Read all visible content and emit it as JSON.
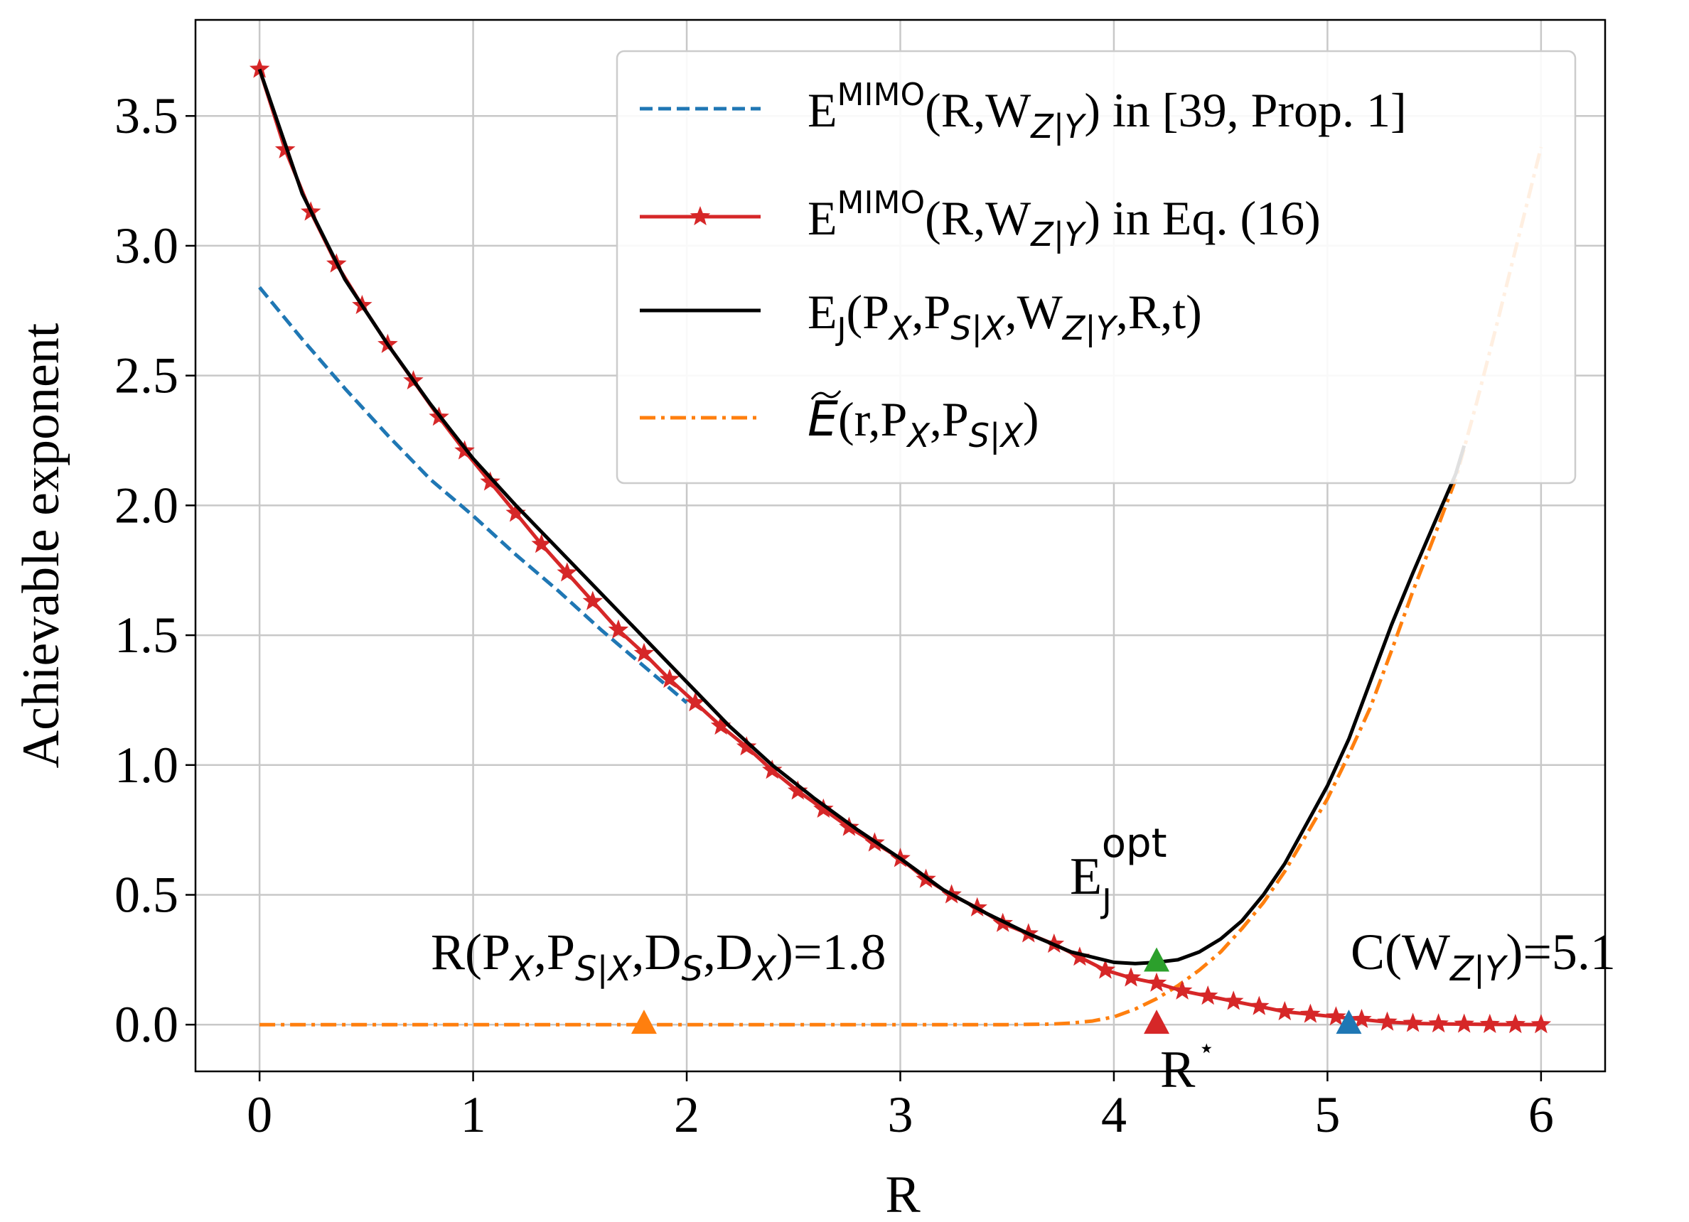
{
  "chart_data": {
    "type": "line",
    "xlabel": "R",
    "ylabel": "Achievable exponent",
    "xlim": [
      -0.3,
      6.3
    ],
    "ylim": [
      -0.18,
      3.87
    ],
    "xticks": [
      0,
      1,
      2,
      3,
      4,
      5,
      6
    ],
    "xtick_labels": [
      "0",
      "1",
      "2",
      "3",
      "4",
      "5",
      "6"
    ],
    "yticks": [
      0.0,
      0.5,
      1.0,
      1.5,
      2.0,
      2.5,
      3.0,
      3.5
    ],
    "ytick_labels": [
      "0.0",
      "0.5",
      "1.0",
      "1.5",
      "2.0",
      "2.5",
      "3.0",
      "3.5"
    ],
    "grid": true,
    "legend_position": "upper-right",
    "colors": {
      "blue": "#1f77b4",
      "red": "#d62728",
      "black": "#000000",
      "orange": "#ff7f0e",
      "green": "#2ca02c",
      "grid": "#c8c8c8"
    },
    "series": [
      {
        "name": "E^MIMO(R,W_Z|Y) in [39, Prop. 1]",
        "legend": {
          "base": "E",
          "sup": "MIMO",
          "a": "(R,W",
          "sub": "Z|Y",
          "b": ") in [39, Prop. 1]"
        },
        "color": "blue",
        "style": "dashed",
        "x": [
          0,
          0.2,
          0.4,
          0.6,
          0.8,
          1.0,
          1.2,
          1.4,
          1.6,
          1.8,
          2.0
        ],
        "y": [
          2.84,
          2.64,
          2.45,
          2.27,
          2.1,
          1.96,
          1.81,
          1.67,
          1.52,
          1.38,
          1.24
        ]
      },
      {
        "name": "E^MIMO(R,W_Z|Y) in Eq. (16)",
        "legend": {
          "base": "E",
          "sup": "MIMO",
          "a": "(R,W",
          "sub": "Z|Y",
          "b": ") in Eq. (16)"
        },
        "color": "red",
        "style": "solid",
        "marker": "star",
        "x": [
          0,
          0.12,
          0.24,
          0.36,
          0.48,
          0.6,
          0.72,
          0.84,
          0.96,
          1.08,
          1.2,
          1.32,
          1.44,
          1.56,
          1.68,
          1.8,
          1.92,
          2.04,
          2.16,
          2.28,
          2.4,
          2.52,
          2.64,
          2.76,
          2.88,
          3.0,
          3.12,
          3.24,
          3.36,
          3.48,
          3.6,
          3.72,
          3.84,
          3.96,
          4.08,
          4.2,
          4.32,
          4.44,
          4.56,
          4.68,
          4.8,
          4.92,
          5.04,
          5.16,
          5.28,
          5.4,
          5.52,
          5.64,
          5.76,
          5.88,
          6.0
        ],
        "y": [
          3.68,
          3.37,
          3.13,
          2.93,
          2.77,
          2.62,
          2.48,
          2.34,
          2.21,
          2.09,
          1.97,
          1.85,
          1.74,
          1.63,
          1.52,
          1.43,
          1.33,
          1.24,
          1.15,
          1.07,
          0.98,
          0.9,
          0.83,
          0.76,
          0.7,
          0.64,
          0.56,
          0.5,
          0.45,
          0.39,
          0.35,
          0.31,
          0.26,
          0.21,
          0.18,
          0.16,
          0.13,
          0.11,
          0.09,
          0.07,
          0.05,
          0.04,
          0.03,
          0.02,
          0.01,
          0.005,
          0.003,
          0.002,
          0.001,
          0.0005,
          0.0
        ]
      },
      {
        "name": "E_J(P_X,P_S|X,W_Z|Y,R,t)",
        "legend": {
          "base": "E",
          "sub0": "J",
          "a": "(P",
          "sub1": "X",
          "b": ",P",
          "sub2": "S|X",
          "c": ",W",
          "sub3": "Z|Y",
          "d": ",R,t)"
        },
        "color": "black",
        "style": "solid",
        "x": [
          0,
          0.2,
          0.4,
          0.6,
          0.8,
          1.0,
          1.2,
          1.4,
          1.6,
          1.8,
          2.0,
          2.2,
          2.4,
          2.6,
          2.8,
          3.0,
          3.2,
          3.4,
          3.6,
          3.8,
          4.0,
          4.1,
          4.2,
          4.3,
          4.4,
          4.5,
          4.6,
          4.7,
          4.8,
          4.9,
          5.0,
          5.1,
          5.2,
          5.3,
          5.4,
          5.5,
          5.6,
          5.64
        ],
        "y": [
          3.68,
          3.2,
          2.87,
          2.62,
          2.39,
          2.18,
          2.0,
          1.83,
          1.66,
          1.49,
          1.32,
          1.15,
          1.0,
          0.87,
          0.75,
          0.64,
          0.52,
          0.43,
          0.35,
          0.28,
          0.24,
          0.235,
          0.24,
          0.25,
          0.28,
          0.33,
          0.4,
          0.5,
          0.62,
          0.77,
          0.92,
          1.1,
          1.32,
          1.54,
          1.74,
          1.93,
          2.12,
          2.23
        ]
      },
      {
        "name": "Ẽ(r,P_X,P_S|X)",
        "legend": {
          "base": "E",
          "a": "(r,P",
          "sub1": "X",
          "b": ",P",
          "sub2": "S|X",
          "c": ")"
        },
        "color": "orange",
        "style": "dashdot",
        "x": [
          0,
          1.0,
          2.0,
          3.0,
          3.5,
          3.7,
          3.8,
          3.9,
          4.0,
          4.1,
          4.2,
          4.3,
          4.4,
          4.5,
          4.6,
          4.7,
          4.8,
          4.9,
          5.0,
          5.1,
          5.2,
          5.3,
          5.4,
          5.5,
          5.6,
          5.7,
          5.8,
          5.9,
          6.0
        ],
        "y": [
          0,
          0,
          0,
          0,
          0,
          0.002,
          0.006,
          0.014,
          0.03,
          0.06,
          0.1,
          0.15,
          0.21,
          0.28,
          0.37,
          0.47,
          0.59,
          0.73,
          0.87,
          1.04,
          1.22,
          1.44,
          1.67,
          1.88,
          2.1,
          2.4,
          2.72,
          3.05,
          3.38
        ]
      }
    ],
    "points": [
      {
        "id": "green-triangle",
        "x": 4.2,
        "y": 0.24,
        "color": "green"
      },
      {
        "id": "red-triangle",
        "x": 4.2,
        "y": 0.0,
        "color": "red"
      },
      {
        "id": "orange-triangle",
        "x": 1.8,
        "y": 0.0,
        "color": "orange"
      },
      {
        "id": "blue-triangle",
        "x": 5.1,
        "y": 0.0,
        "color": "blue"
      }
    ],
    "annotations": {
      "ej_opt": {
        "base": "E",
        "sub": "J",
        "sup": "opt"
      },
      "rate_distortion": {
        "a": "R(P",
        "s1": "X",
        "b": ",P",
        "s2": "S|X",
        "c": ",D",
        "s3": "S",
        "d": ",D",
        "s4": "X",
        "e": ")=1.8"
      },
      "capacity": {
        "a": "C(W",
        "s1": "Z|Y",
        "b": ")=5.1"
      },
      "r_star": {
        "base": "R",
        "sup": "⋆"
      }
    }
  }
}
